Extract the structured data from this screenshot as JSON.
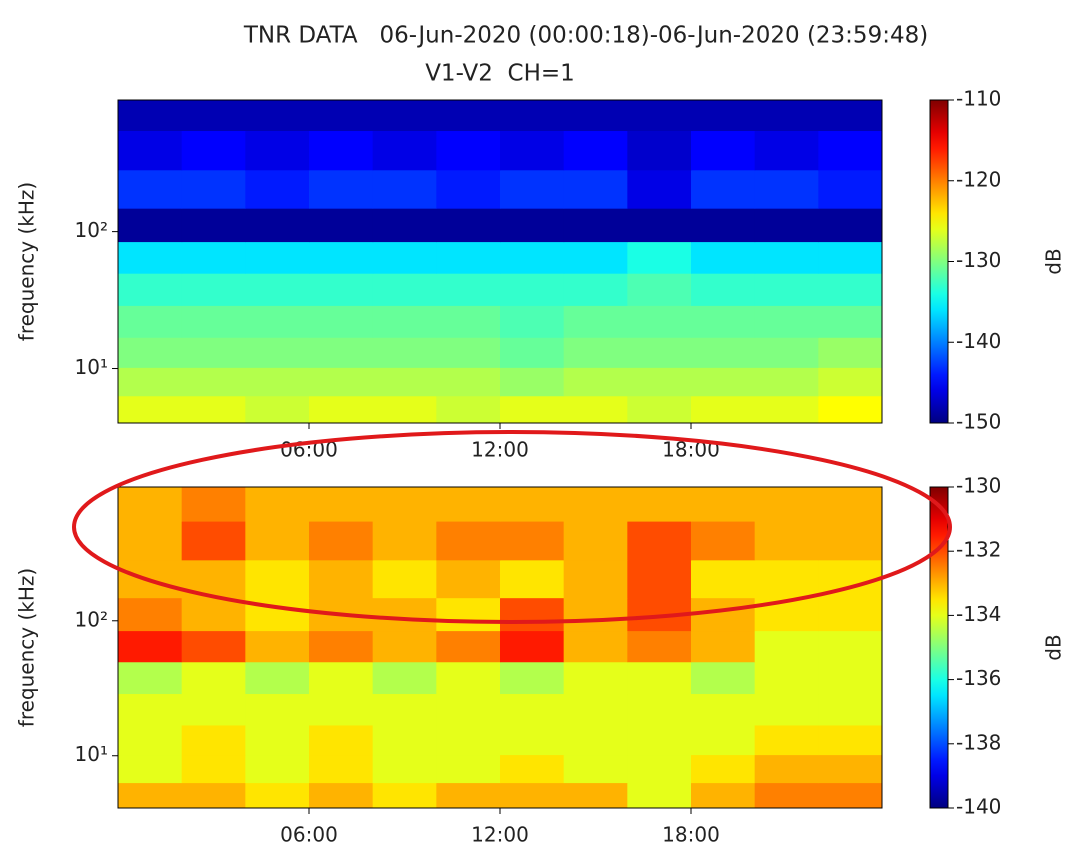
{
  "chart_data": [
    {
      "type": "heatmap",
      "title": "TNR DATA   06-Jun-2020 (00:00:18)-06-Jun-2020 (23:59:48)",
      "subtitle": "V1-V2  CH=1",
      "ylabel": "frequency (kHz)",
      "colorbar_label": "dB",
      "colormap": "jet",
      "log_y": true,
      "xlim": [
        0,
        24
      ],
      "xticks": [
        {
          "value": 6,
          "label": "06:00"
        },
        {
          "value": 12,
          "label": "12:00"
        },
        {
          "value": 18,
          "label": "18:00"
        }
      ],
      "ylim": [
        4,
        915
      ],
      "yticks": [
        {
          "value": 10,
          "label": "10¹"
        },
        {
          "value": 100,
          "label": "10²"
        }
      ],
      "clim": [
        -150,
        -110
      ],
      "cticks": [
        -150,
        -140,
        -130,
        -120,
        -110
      ],
      "x": [
        1,
        3,
        5,
        7,
        9,
        11,
        13,
        15,
        17,
        19,
        21,
        23
      ],
      "y": [
        5,
        8,
        13,
        22,
        38,
        65,
        110,
        200,
        400,
        750
      ],
      "z": [
        [
          -126,
          -126,
          -127,
          -126,
          -126,
          -127,
          -126,
          -126,
          -127,
          -126,
          -126,
          -125
        ],
        [
          -128,
          -128,
          -128,
          -128,
          -128,
          -128,
          -129,
          -128,
          -128,
          -128,
          -128,
          -127
        ],
        [
          -130,
          -130,
          -130,
          -130,
          -130,
          -130,
          -131,
          -130,
          -130,
          -130,
          -130,
          -129
        ],
        [
          -131,
          -131,
          -131,
          -131,
          -131,
          -131,
          -132,
          -131,
          -131,
          -131,
          -131,
          -131
        ],
        [
          -133,
          -133,
          -133,
          -133,
          -133,
          -133,
          -133,
          -133,
          -132,
          -133,
          -133,
          -133
        ],
        [
          -136,
          -136,
          -136,
          -136,
          -136,
          -136,
          -136,
          -136,
          -134,
          -136,
          -136,
          -136
        ],
        [
          -149,
          -149,
          -149,
          -149,
          -149,
          -149,
          -149,
          -149,
          -149,
          -149,
          -149,
          -149
        ],
        [
          -143,
          -143,
          -144,
          -143,
          -143,
          -144,
          -143,
          -143,
          -146,
          -143,
          -143,
          -144
        ],
        [
          -146,
          -145,
          -146,
          -145,
          -146,
          -145,
          -146,
          -145,
          -147,
          -145,
          -146,
          -145
        ],
        [
          -148,
          -148,
          -148,
          -148,
          -148,
          -148,
          -148,
          -148,
          -148,
          -148,
          -148,
          -148
        ]
      ]
    },
    {
      "type": "heatmap",
      "ylabel": "frequency (kHz)",
      "colorbar_label": "dB",
      "colormap": "jet",
      "log_y": true,
      "xlim": [
        0,
        24
      ],
      "xticks": [
        {
          "value": 6,
          "label": "06:00"
        },
        {
          "value": 12,
          "label": "12:00"
        },
        {
          "value": 18,
          "label": "18:00"
        }
      ],
      "ylim": [
        4.1,
        980
      ],
      "yticks": [
        {
          "value": 10,
          "label": "10¹"
        },
        {
          "value": 100,
          "label": "10²"
        }
      ],
      "clim": [
        -140,
        -130
      ],
      "cticks": [
        -140,
        -138,
        -136,
        -134,
        -132,
        -130
      ],
      "x": [
        1,
        3,
        5,
        7,
        9,
        11,
        13,
        15,
        17,
        19,
        21,
        23
      ],
      "y": [
        5,
        8,
        13,
        22,
        38,
        65,
        110,
        200,
        400,
        750
      ],
      "z": [
        [
          -133,
          -133,
          -133.5,
          -133,
          -133.5,
          -133,
          -133,
          -133,
          -134,
          -133,
          -132.5,
          -132.5
        ],
        [
          -134,
          -133.5,
          -134,
          -133.5,
          -134,
          -134,
          -133.5,
          -134,
          -134,
          -133.5,
          -133,
          -133
        ],
        [
          -134,
          -133.5,
          -134,
          -133.5,
          -134,
          -134,
          -134,
          -134,
          -134,
          -134,
          -133.5,
          -133.5
        ],
        [
          -134,
          -134,
          -134,
          -134,
          -134,
          -134,
          -134,
          -134,
          -134,
          -134,
          -134,
          -134
        ],
        [
          -134.5,
          -134,
          -134.5,
          -134,
          -134.5,
          -134,
          -134.5,
          -134,
          -134,
          -134.5,
          -134,
          -134
        ],
        [
          -131.5,
          -132,
          -133,
          -132.5,
          -133,
          -132.5,
          -131.5,
          -133,
          -132.5,
          -133,
          -134,
          -134
        ],
        [
          -132.5,
          -133,
          -133.5,
          -133,
          -133,
          -133.5,
          -132,
          -133,
          -132,
          -133,
          -133.5,
          -133.5
        ],
        [
          -133,
          -133,
          -133.5,
          -133,
          -133.5,
          -133,
          -133.5,
          -133,
          -132,
          -133.5,
          -133.5,
          -133.5
        ],
        [
          -133,
          -132,
          -133,
          -132.5,
          -133,
          -132.5,
          -132.5,
          -133,
          -132,
          -132.5,
          -133,
          -133
        ],
        [
          -133,
          -132.5,
          -133,
          -133,
          -133,
          -133,
          -133,
          -133,
          -133,
          -133,
          -133,
          -133
        ]
      ]
    }
  ]
}
